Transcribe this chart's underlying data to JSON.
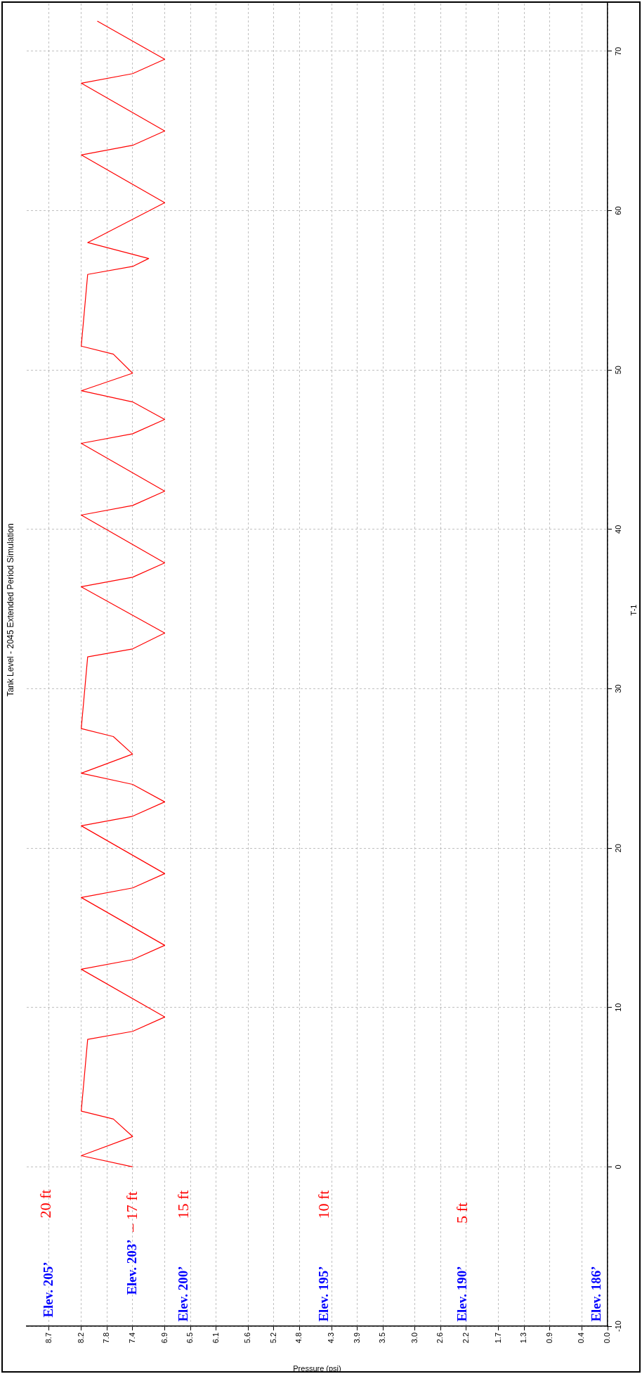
{
  "chart_data": {
    "type": "line",
    "title": "Tank Level - 2045 Extended Period Simulation",
    "xlabel": "Pressure (psi)",
    "ylabel": "T-1",
    "xlim": [
      9.05,
      0
    ],
    "xticks": [
      8.7,
      8.2,
      7.8,
      7.4,
      6.9,
      6.5,
      6.1,
      5.6,
      5.2,
      4.8,
      4.3,
      3.9,
      3.5,
      {
        "value": 3,
        "label": "3.0"
      },
      2.6,
      2.2,
      1.7,
      1.3,
      0.9,
      0.4,
      {
        "value": 0,
        "label": "0.0"
      }
    ],
    "ylim": [
      -10,
      73
    ],
    "yticks": [
      -10,
      0,
      10,
      20,
      30,
      40,
      50,
      60,
      70
    ],
    "grid": true,
    "series": [
      {
        "color": "#ff0000",
        "x": [
          7.4,
          8.2,
          7.4,
          7.7,
          8.2,
          8.1,
          7.4,
          6.9,
          8.2,
          7.4,
          6.9,
          8.2,
          7.4,
          6.9,
          8.2,
          7.4,
          6.9,
          7.4,
          8.2,
          7.4,
          7.7,
          8.2,
          8.1,
          7.4,
          6.9,
          8.2,
          7.4,
          6.9,
          8.2,
          7.4,
          6.9,
          8.2,
          7.4,
          6.9,
          7.4,
          8.2,
          7.4,
          7.7,
          8.2,
          8.1,
          7.4,
          7.15,
          8.1,
          6.9,
          8.2,
          7.4,
          6.9,
          8.2,
          7.4,
          6.9,
          7.95
        ],
        "values": [
          0,
          0.7,
          1.9,
          3.0,
          3.5,
          8.0,
          8.5,
          9.4,
          12.4,
          13.0,
          13.9,
          16.9,
          17.5,
          18.4,
          21.4,
          22.0,
          22.9,
          24.0,
          24.7,
          25.9,
          27.0,
          27.5,
          32.0,
          32.5,
          33.5,
          36.4,
          37.0,
          37.9,
          40.9,
          41.5,
          42.4,
          45.4,
          46.0,
          46.9,
          48.0,
          48.7,
          49.8,
          51.0,
          51.5,
          56.0,
          56.5,
          57.0,
          58.0,
          60.5,
          63.5,
          64.1,
          65.0,
          68.0,
          68.6,
          69.5,
          71.9
        ]
      }
    ],
    "annotations": [
      "Elev. 205’",
      "20 ft",
      "Elev. 203’",
      "– 17 ft",
      "Elev. 200’",
      "15 ft",
      "Elev. 195’",
      "10 ft",
      "Elev. 190’",
      "5 ft",
      "Elev. 186’"
    ]
  }
}
